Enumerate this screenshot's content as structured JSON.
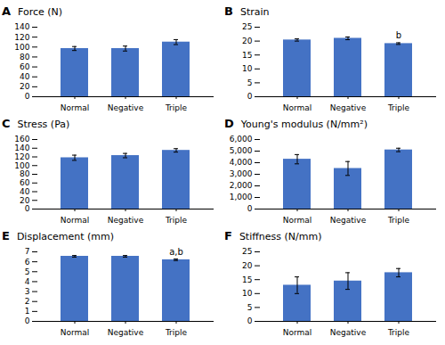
{
  "chart_data": [
    {
      "type": "bar",
      "panel_label": "A",
      "title": "Force (N)",
      "categories": [
        "Normal",
        "Negative",
        "Triple"
      ],
      "values": [
        97,
        97,
        110
      ],
      "errors": [
        4,
        5,
        5
      ],
      "color": "#4472C4",
      "ylim": [
        0,
        140
      ],
      "yticks": [
        0,
        20,
        40,
        60,
        80,
        100,
        120,
        140
      ],
      "grid": false,
      "annotations": []
    },
    {
      "type": "bar",
      "panel_label": "B",
      "title": "Strain",
      "categories": [
        "Normal",
        "Negative",
        "Triple"
      ],
      "values": [
        20.4,
        21.0,
        19.1
      ],
      "errors": [
        0.4,
        0.5,
        0.3
      ],
      "color": "#4472C4",
      "ylim": [
        0,
        25
      ],
      "yticks": [
        0,
        5,
        10,
        15,
        20,
        25
      ],
      "grid": false,
      "annotations": [
        {
          "category": "Triple",
          "text": "b"
        }
      ]
    },
    {
      "type": "bar",
      "panel_label": "C",
      "title": "Stress (Pa)",
      "categories": [
        "Normal",
        "Negative",
        "Triple"
      ],
      "values": [
        118,
        123,
        135
      ],
      "errors": [
        6,
        5,
        4
      ],
      "color": "#4472C4",
      "ylim": [
        0,
        160
      ],
      "yticks": [
        0,
        20,
        40,
        60,
        80,
        100,
        120,
        140,
        160
      ],
      "grid": false,
      "annotations": []
    },
    {
      "type": "bar",
      "panel_label": "D",
      "title": "Young's modulus (N/mm²)",
      "categories": [
        "Normal",
        "Negative",
        "Triple"
      ],
      "values": [
        4300,
        3500,
        5100
      ],
      "errors": [
        400,
        600,
        150
      ],
      "color": "#4472C4",
      "ylim": [
        0,
        6000
      ],
      "yticks": [
        0,
        {
          "value": 1000,
          "label": "1,000"
        },
        {
          "value": 2000,
          "label": "2,000"
        },
        {
          "value": 3000,
          "label": "3,000"
        },
        {
          "value": 4000,
          "label": "4,000"
        },
        {
          "value": 5000,
          "label": "5,000"
        },
        {
          "value": 6000,
          "label": "6,000"
        }
      ],
      "grid": false,
      "annotations": []
    },
    {
      "type": "bar",
      "panel_label": "E",
      "title": "Displacement (mm)",
      "categories": [
        "Normal",
        "Negative",
        "Triple"
      ],
      "values": [
        6.55,
        6.55,
        6.2
      ],
      "errors": [
        0.08,
        0.08,
        0.08
      ],
      "color": "#4472C4",
      "ylim": [
        0,
        7
      ],
      "yticks": [
        0,
        1,
        2,
        3,
        4,
        5,
        6,
        7
      ],
      "grid": false,
      "annotations": [
        {
          "category": "Triple",
          "text": "a,b"
        }
      ]
    },
    {
      "type": "bar",
      "panel_label": "F",
      "title": "Stiffness (N/mm)",
      "categories": [
        "Normal",
        "Negative",
        "Triple"
      ],
      "values": [
        13,
        14.5,
        17.5
      ],
      "errors": [
        3,
        3,
        1.5
      ],
      "color": "#4472C4",
      "ylim": [
        0,
        25
      ],
      "yticks": [
        0,
        5,
        10,
        15,
        20,
        25
      ],
      "grid": false,
      "annotations": []
    }
  ]
}
